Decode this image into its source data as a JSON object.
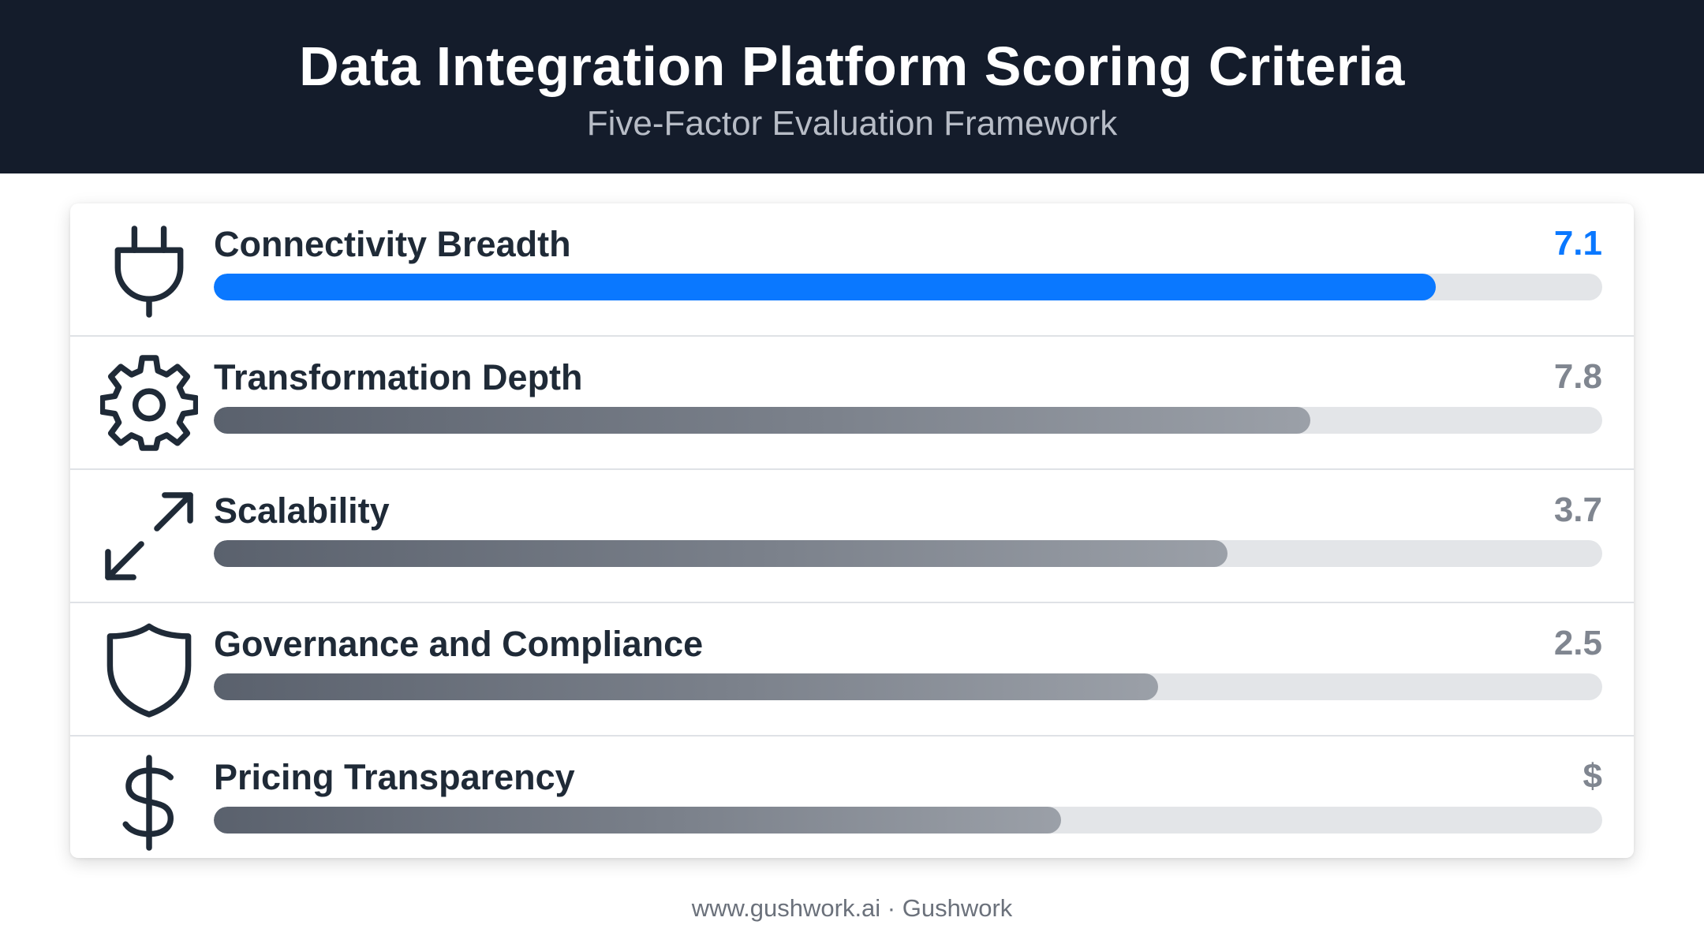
{
  "header": {
    "title": "Data Integration Platform Scoring Criteria",
    "subtitle": "Five-Factor Evaluation Framework"
  },
  "colors": {
    "header_bg": "#141c2b",
    "accent": "#0a78ff",
    "bar_gray": "#6f757f",
    "track": "#e3e5e8"
  },
  "chart_data": {
    "type": "bar",
    "orientation": "horizontal",
    "title": "Data Integration Platform Scoring Criteria",
    "subtitle": "Five-Factor Evaluation Framework",
    "categories": [
      "Connectivity Breadth",
      "Transformation Depth",
      "Scalability",
      "Governance and Compliance",
      "Pricing Transparency"
    ],
    "value_labels": [
      "7.1",
      "7.8",
      "3.7",
      "2.5",
      "$"
    ],
    "bar_fill_fraction": [
      0.88,
      0.79,
      0.73,
      0.68,
      0.61
    ],
    "icons": [
      "plug-icon",
      "gear-icon",
      "expand-arrows-icon",
      "shield-icon",
      "dollar-icon"
    ],
    "highlighted_index": 0
  },
  "footer": {
    "text": "www.gushwork.ai · Gushwork"
  }
}
